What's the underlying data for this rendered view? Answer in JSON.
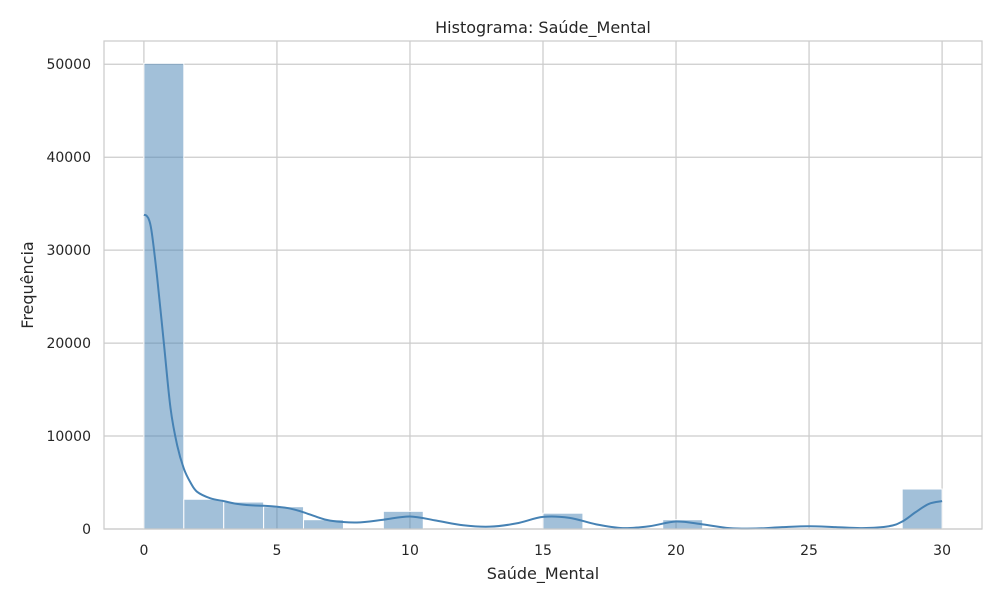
{
  "chart_data": {
    "type": "bar",
    "subtype": "histogram",
    "title": "Histograma: Saúde_Mental",
    "xlabel": "Saúde_Mental",
    "ylabel": "Frequência",
    "xlim": [
      -1.5,
      31.5
    ],
    "ylim": [
      0,
      52500
    ],
    "xticks": [
      0,
      5,
      10,
      15,
      20,
      25,
      30
    ],
    "yticks": [
      0,
      10000,
      20000,
      30000,
      40000,
      50000
    ],
    "grid": true,
    "bar_color": "#4682b4",
    "bar_opacity": 0.5,
    "bar_edge_color": "#ffffff",
    "bin_edges": [
      0,
      1.5,
      3,
      4.5,
      6,
      7.5,
      9,
      10.5,
      12,
      13.5,
      15,
      16.5,
      18,
      19.5,
      21,
      22.5,
      24,
      25.5,
      27,
      28.5,
      30
    ],
    "values": [
      50100,
      3200,
      2900,
      2400,
      1000,
      0,
      1900,
      0,
      0,
      0,
      1700,
      0,
      0,
      1000,
      0,
      0,
      0,
      0,
      0,
      4300
    ],
    "kde": {
      "color": "#4682b4",
      "x": [
        0,
        0.1,
        0.2,
        0.3,
        0.5,
        0.75,
        1.0,
        1.25,
        1.5,
        1.75,
        2.0,
        2.5,
        3.0,
        3.5,
        4.0,
        4.5,
        5.0,
        5.5,
        6.0,
        6.5,
        7.0,
        8.0,
        9.0,
        10.0,
        11.0,
        12.0,
        13.0,
        14.0,
        15.0,
        16.0,
        17.0,
        18.0,
        19.0,
        20.0,
        21.0,
        22.0,
        23.0,
        24.0,
        25.0,
        26.0,
        27.0,
        28.0,
        28.5,
        29.0,
        29.5,
        30.0
      ],
      "y": [
        33800,
        33700,
        33200,
        31800,
        27000,
        20000,
        13000,
        9000,
        6500,
        5000,
        4000,
        3300,
        3000,
        2700,
        2550,
        2500,
        2400,
        2200,
        1800,
        1300,
        900,
        700,
        1000,
        1350,
        900,
        400,
        250,
        600,
        1300,
        1200,
        500,
        100,
        300,
        800,
        500,
        100,
        50,
        200,
        300,
        200,
        100,
        300,
        800,
        1800,
        2700,
        3000
      ]
    }
  }
}
